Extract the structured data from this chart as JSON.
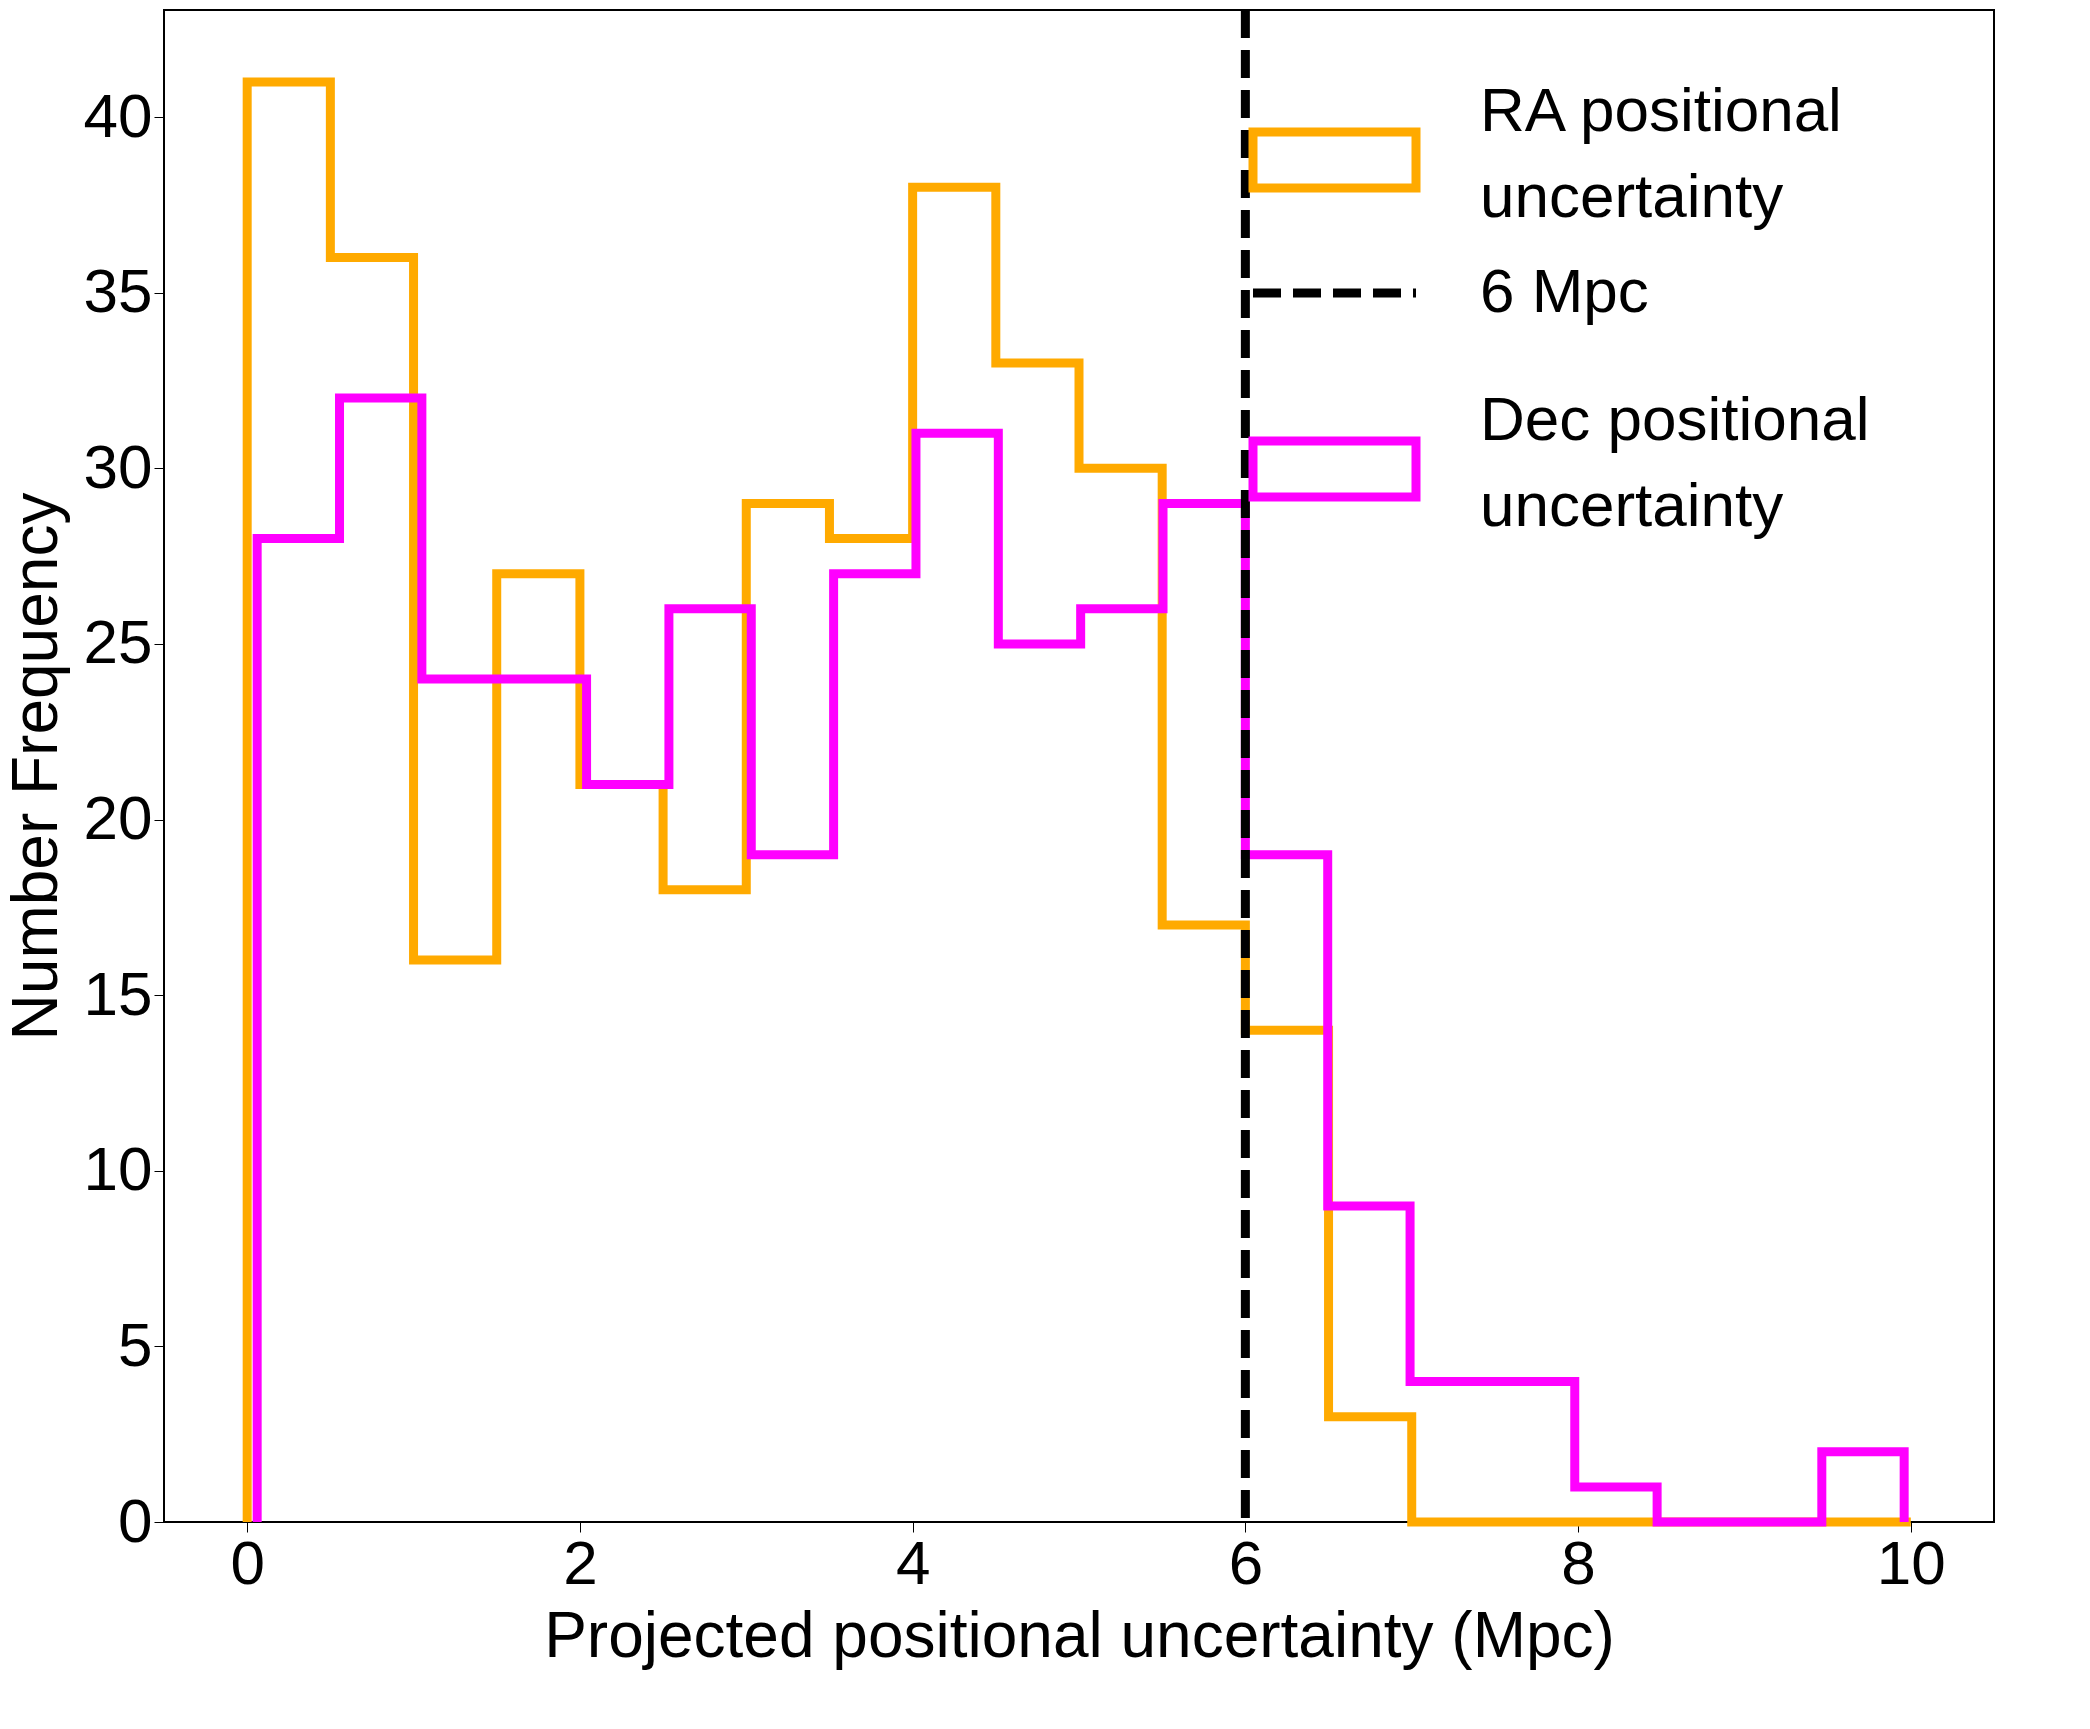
{
  "chart_data": {
    "type": "histogram",
    "xlabel": "Projected positional uncertainty (Mpc)",
    "ylabel": "Number Frequency",
    "bins": [
      0,
      0.5,
      1,
      1.5,
      2,
      2.5,
      3,
      3.5,
      4,
      4.5,
      5,
      5.5,
      6,
      6.5,
      7,
      7.5,
      8,
      8.5,
      9,
      9.5,
      10
    ],
    "xlim": [
      -0.5,
      10.5
    ],
    "xticks": [
      0,
      2,
      4,
      6,
      8,
      10
    ],
    "ylim": [
      0,
      43.05
    ],
    "yticks": [
      0,
      5,
      10,
      15,
      20,
      25,
      30,
      35,
      40
    ],
    "grid": false,
    "legend": "top right",
    "series": [
      {
        "name": "RA positional uncertainty",
        "color": "#ffaa00",
        "values": [
          41,
          36,
          16,
          27,
          21,
          18,
          29,
          28,
          38,
          33,
          30,
          17,
          14,
          3,
          0,
          0,
          0,
          0,
          0,
          0
        ]
      },
      {
        "name": "Dec positional uncertainty",
        "color": "#ff00ff",
        "bins": [
          0.06,
          0.555,
          1.05,
          1.545,
          2.04,
          2.535,
          3.03,
          3.525,
          4.02,
          4.515,
          5.01,
          5.505,
          6,
          6.495,
          6.99,
          7.485,
          7.98,
          8.475,
          8.97,
          9.465,
          9.96
        ],
        "values": [
          28,
          32,
          24,
          24,
          21,
          26,
          19,
          27,
          31,
          25,
          26,
          29,
          19,
          9,
          4,
          4,
          1,
          0,
          0,
          2
        ]
      }
    ],
    "ref_lines": [
      {
        "axis": "x",
        "value": 6,
        "label": "6 Mpc",
        "color": "#000000",
        "line_style": "dashed"
      }
    ]
  }
}
